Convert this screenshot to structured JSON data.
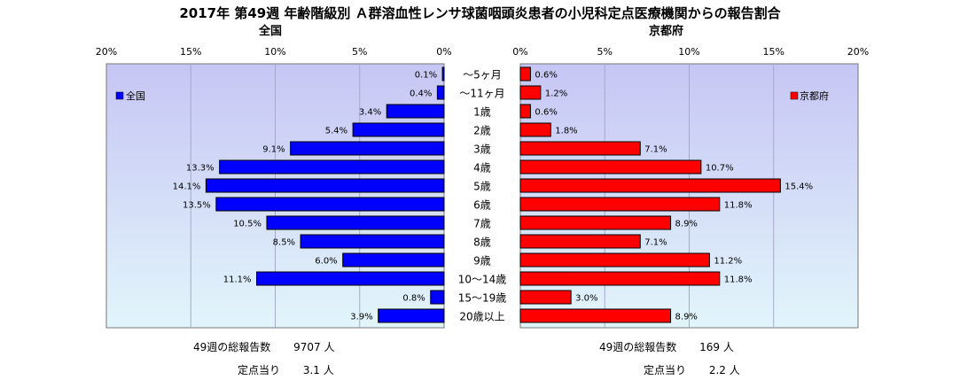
{
  "chart_data": {
    "type": "bar",
    "title": "2017年 第49週 年齢階級別 Ａ群溶血性レンサ球菌咽頭炎患者の小児科定点医療機関からの報告割合",
    "categories": [
      "～5ヶ月",
      "～11ヶ月",
      "1歳",
      "2歳",
      "3歳",
      "4歳",
      "5歳",
      "6歳",
      "7歳",
      "8歳",
      "9歳",
      "10～14歳",
      "15～19歳",
      "20歳以上"
    ],
    "xlim": [
      0,
      20
    ],
    "ticks": [
      "0%",
      "5%",
      "10%",
      "15%",
      "20%"
    ],
    "tick_values": [
      0,
      5,
      10,
      15,
      20
    ],
    "series": [
      {
        "name": "全国",
        "side": "left",
        "color": "#0000ff",
        "values": [
          0.1,
          0.4,
          3.4,
          5.4,
          9.1,
          13.3,
          14.1,
          13.5,
          10.5,
          8.5,
          6.0,
          11.1,
          0.8,
          3.9
        ],
        "labels": [
          "0.1%",
          "0.4%",
          "3.4%",
          "5.4%",
          "9.1%",
          "13.3%",
          "14.1%",
          "13.5%",
          "10.5%",
          "8.5%",
          "6.0%",
          "11.1%",
          "0.8%",
          "3.9%"
        ]
      },
      {
        "name": "京都府",
        "side": "right",
        "color": "#ff0000",
        "values": [
          0.6,
          1.2,
          0.6,
          1.8,
          7.1,
          10.7,
          15.4,
          11.8,
          8.9,
          7.1,
          11.2,
          11.8,
          3.0,
          8.9
        ],
        "labels": [
          "0.6%",
          "1.2%",
          "0.6%",
          "1.8%",
          "7.1%",
          "10.7%",
          "15.4%",
          "11.8%",
          "8.9%",
          "7.1%",
          "11.2%",
          "11.8%",
          "3.0%",
          "8.9%"
        ]
      }
    ],
    "legend": [
      "全国",
      "京都府"
    ],
    "grid": true
  },
  "panels": {
    "left_title": "全国",
    "right_title": "京都府"
  },
  "summary": {
    "left": {
      "total_label": "49週の総報告数",
      "total_value": "9707 人",
      "per_site_label": "定点当り",
      "per_site_value": "3.1 人"
    },
    "right": {
      "total_label": "49週の総報告数",
      "total_value": "169 人",
      "per_site_label": "定点当り",
      "per_site_value": "2.2 人"
    }
  },
  "colors": {
    "plot_bg_top": "#c6c6f4",
    "plot_bg_bottom": "#e2f5fb",
    "national_bar": "#0000ff",
    "kyoto_bar": "#ff0000"
  }
}
